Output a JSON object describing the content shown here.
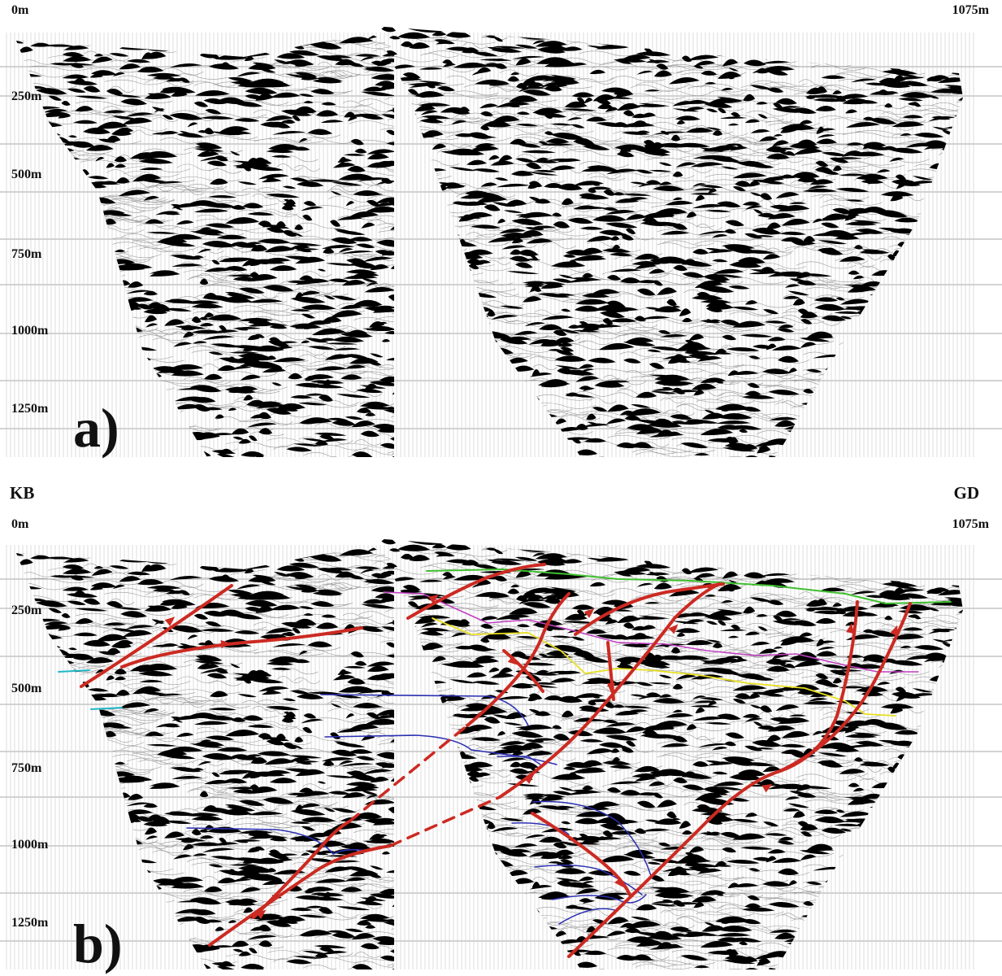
{
  "panel_a": {
    "label": "a)",
    "top_left": "0m",
    "top_right": "1075m",
    "depths": [
      "250m",
      "500m",
      "750m",
      "1000m",
      "1250m"
    ]
  },
  "panel_b": {
    "label": "b)",
    "top_left": "0m",
    "top_right": "1075m",
    "depths": [
      "250m",
      "500m",
      "750m",
      "1000m",
      "1250m"
    ]
  },
  "wells": {
    "left": "KB",
    "right": "GD"
  },
  "colors": {
    "fault": "#cc2a22",
    "horizon_green": "#3fbf2f",
    "horizon_magenta": "#c040c0",
    "horizon_yellow": "#e8e020",
    "horizon_blue": "#2b2fb0",
    "horizon_cyan": "#20b8c8",
    "seismic": "#000000"
  }
}
